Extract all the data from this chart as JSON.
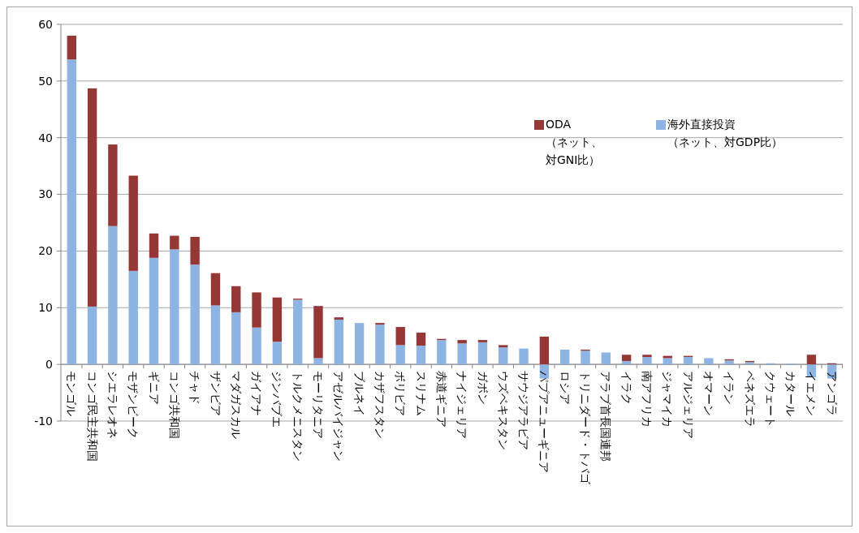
{
  "chart_data": {
    "type": "bar",
    "stacked": true,
    "categories": [
      "モンゴル",
      "コンゴ民主共和国",
      "シエラレオネ",
      "モザンビーク",
      "ギニア",
      "コンゴ共和国",
      "チャド",
      "ザンビア",
      "マダガスカル",
      "ガイアナ",
      "ジンバブエ",
      "トルクメニスタン",
      "モーリタニア",
      "アゼルバイジャン",
      "ブルネイ",
      "カザフスタン",
      "ボリビア",
      "スリナム",
      "赤道ギニア",
      "ナイジェリア",
      "ガボン",
      "ウズベキスタン",
      "サウジアラビア",
      "パプアニューギニア",
      "ロシア",
      "トリニダード・トバゴ",
      "アラブ首長国連邦",
      "イラク",
      "南アフリカ",
      "ジャマイカ",
      "アルジェリア",
      "オマーン",
      "イラン",
      "ベネズエラ",
      "クウェート",
      "カタール",
      "イエメン",
      "アンゴラ"
    ],
    "series": [
      {
        "name": "海外直接投資（ネット、対GDP比）",
        "color": "#8eb4e3",
        "values": [
          53.8,
          10.2,
          24.4,
          16.5,
          18.8,
          20.3,
          17.6,
          10.4,
          9.2,
          6.5,
          4.0,
          11.4,
          1.1,
          7.9,
          7.3,
          7.0,
          3.4,
          3.3,
          4.3,
          3.7,
          3.9,
          3.0,
          2.8,
          -2.5,
          2.6,
          2.4,
          2.1,
          0.6,
          1.3,
          1.1,
          1.3,
          1.1,
          0.7,
          0.4,
          0.2,
          0.1,
          -2.3,
          -2.5
        ]
      },
      {
        "name": "ODA（ネット、対GNI比）",
        "color": "#953735",
        "values": [
          4.2,
          38.5,
          14.4,
          16.8,
          4.3,
          2.4,
          4.9,
          5.7,
          4.6,
          6.2,
          7.8,
          0.2,
          9.2,
          0.4,
          0,
          0.3,
          3.2,
          2.3,
          0.2,
          0.6,
          0.4,
          0.4,
          0,
          4.9,
          0,
          0.2,
          0,
          1.1,
          0.4,
          0.4,
          0.2,
          0,
          0.2,
          0.2,
          0,
          0,
          1.7,
          0.2
        ]
      }
    ],
    "ylim": [
      -10,
      60
    ],
    "yticks": [
      -10,
      0,
      10,
      20,
      30,
      40,
      50,
      60
    ],
    "grid": "y",
    "legend": "top right"
  }
}
